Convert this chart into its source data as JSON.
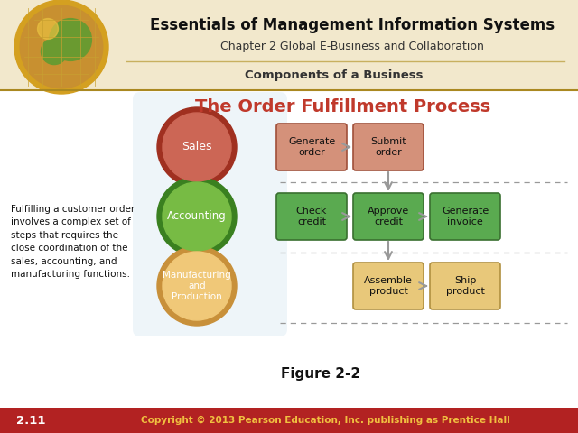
{
  "title": "The Order Fulfillment Process",
  "subtitle": "Components of a Business",
  "header_title": "Essentials of Management Information Systems",
  "header_subtitle": "Chapter 2 Global E-Business and Collaboration",
  "figure_label": "Figure 2-2",
  "slide_number": "2.11",
  "copyright": "Copyright © 2013 Pearson Education, Inc. publishing as Prentice Hall",
  "body_text": "Fulfilling a customer order\ninvolves a complex set of\nsteps that requires the\nclose coordination of the\nsales, accounting, and\nmanufacturing functions.",
  "bg_color": "#ffffff",
  "header_bg": "#f2e8cc",
  "footer_bg": "#b22222",
  "dashed_color": "#999999",
  "arrow_color": "#999999",
  "title_color": "#c0392b",
  "subtitle_color": "#333333",
  "header_title_color": "#111111",
  "header_subtitle_color": "#333333",
  "sep_line_color": "#c8b060",
  "body_line_color": "#cc0000",
  "circle_sales_outer": "#a03020",
  "circle_sales_inner": "#cc6655",
  "circle_account_outer": "#3a8020",
  "circle_account_inner": "#77bb44",
  "circle_mfg_outer": "#c8903a",
  "circle_mfg_inner": "#f0c878",
  "box_sales_face": "#d4917a",
  "box_sales_edge": "#a0503a",
  "box_acct_face": "#5aaa50",
  "box_acct_edge": "#3a7030",
  "box_mfg_face": "#e8c87a",
  "box_mfg_edge": "#b09040",
  "light_blue_bg": "#d0e4f0"
}
